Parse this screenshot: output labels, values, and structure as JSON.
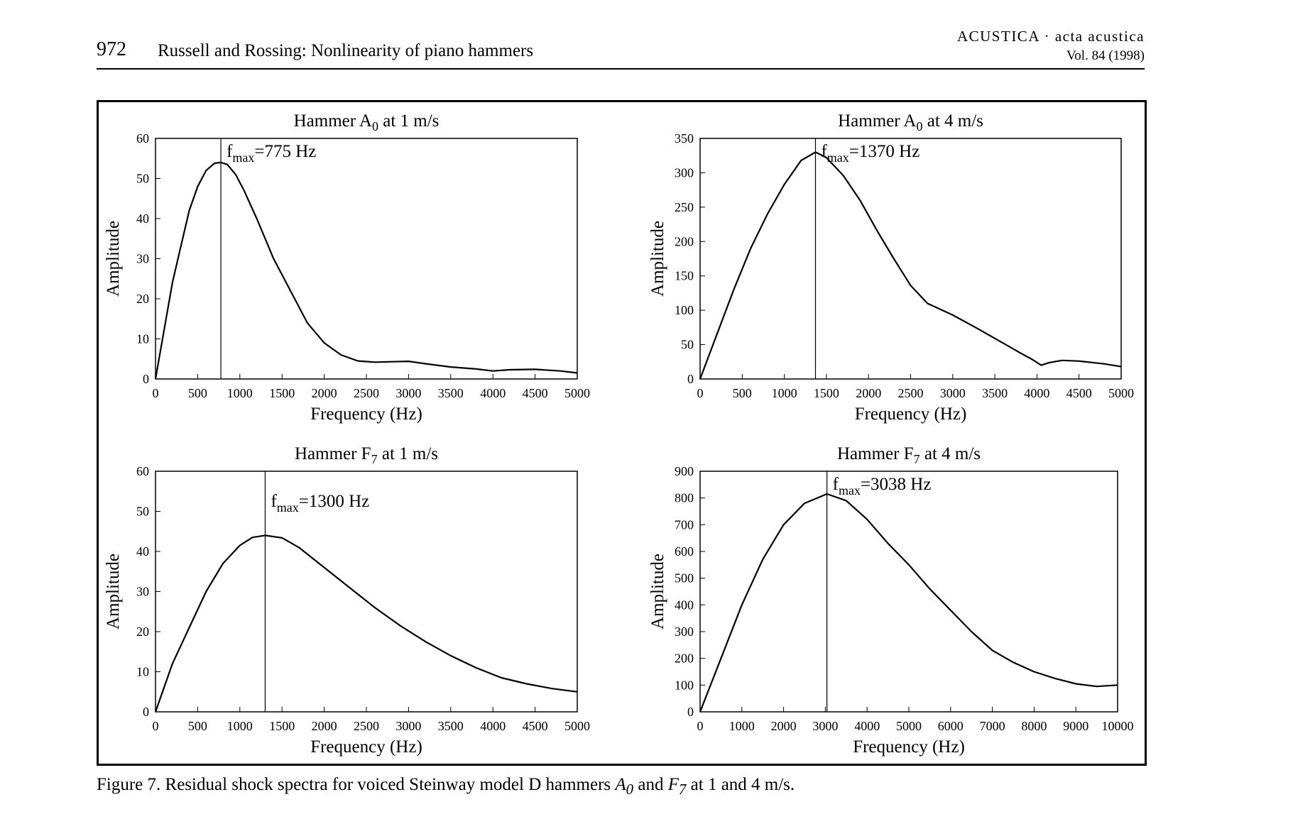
{
  "header": {
    "page_number": "972",
    "running_title": "Russell and Rossing: Nonlinearity of piano hammers",
    "journal": "ACUSTICA · acta acustica",
    "volume": "Vol. 84 (1998)"
  },
  "caption": {
    "prefix": "Figure 7. Residual shock spectra for voiced Steinway model D hammers ",
    "a_main": "A",
    "a_sub": "0",
    "mid": " and ",
    "f_main": "F",
    "f_sub": "7",
    "suffix": " at 1 and 4 m/s."
  },
  "chart_data": [
    {
      "type": "line",
      "title": "Hammer A",
      "title_sub": "0",
      "title_rest": " at 1 m/s",
      "xlabel": "Frequency (Hz)",
      "ylabel": "Amplitude",
      "xlim": [
        0,
        5000
      ],
      "ylim": [
        0,
        60
      ],
      "xticks": [
        0,
        500,
        1000,
        1500,
        2000,
        2500,
        3000,
        3500,
        4000,
        4500,
        5000
      ],
      "yticks": [
        0,
        10,
        20,
        30,
        40,
        50,
        60
      ],
      "fmax": 775,
      "fmax_label": "max",
      "fmax_value": "=775 Hz",
      "x": [
        0,
        100,
        200,
        300,
        400,
        500,
        600,
        700,
        775,
        850,
        950,
        1050,
        1200,
        1400,
        1600,
        1800,
        2000,
        2200,
        2400,
        2600,
        2800,
        3000,
        3200,
        3500,
        3800,
        4000,
        4200,
        4500,
        4800,
        5000
      ],
      "y": [
        0,
        12,
        24,
        33,
        42,
        48,
        52,
        53.8,
        54,
        53.5,
        51,
        47,
        40,
        30,
        22,
        14,
        9,
        6,
        4.5,
        4.2,
        4.3,
        4.4,
        3.8,
        3.0,
        2.5,
        2.0,
        2.3,
        2.4,
        2.0,
        1.5
      ],
      "grid": false
    },
    {
      "type": "line",
      "title": "Hammer A",
      "title_sub": "0",
      "title_rest": " at 4 m/s",
      "xlabel": "Frequency (Hz)",
      "ylabel": "Amplitude",
      "xlim": [
        0,
        5000
      ],
      "ylim": [
        0,
        350
      ],
      "xticks": [
        0,
        500,
        1000,
        1500,
        2000,
        2500,
        3000,
        3500,
        4000,
        4500,
        5000
      ],
      "yticks": [
        0,
        50,
        100,
        150,
        200,
        250,
        300,
        350
      ],
      "fmax": 1370,
      "fmax_label": "max",
      "fmax_value": "=1370 Hz",
      "x": [
        0,
        200,
        400,
        600,
        800,
        1000,
        1200,
        1370,
        1500,
        1700,
        1900,
        2100,
        2300,
        2500,
        2700,
        3000,
        3300,
        3600,
        3800,
        3950,
        4050,
        4150,
        4300,
        4500,
        4800,
        5000
      ],
      "y": [
        0,
        65,
        130,
        190,
        240,
        283,
        318,
        330,
        322,
        296,
        260,
        216,
        175,
        136,
        110,
        93,
        73,
        52,
        38,
        28,
        20,
        24,
        27,
        26,
        22,
        18
      ],
      "grid": false
    },
    {
      "type": "line",
      "title": "Hammer F",
      "title_sub": "7",
      "title_rest": " at 1 m/s",
      "xlabel": "Frequency (Hz)",
      "ylabel": "Amplitude",
      "xlim": [
        0,
        5000
      ],
      "ylim": [
        0,
        60
      ],
      "xticks": [
        0,
        500,
        1000,
        1500,
        2000,
        2500,
        3000,
        3500,
        4000,
        4500,
        5000
      ],
      "yticks": [
        0,
        10,
        20,
        30,
        40,
        50,
        60
      ],
      "fmax": 1300,
      "fmax_label": "max",
      "fmax_value": "=1300 Hz",
      "x": [
        0,
        100,
        200,
        400,
        600,
        800,
        1000,
        1150,
        1300,
        1500,
        1700,
        2000,
        2300,
        2600,
        2900,
        3200,
        3500,
        3800,
        4100,
        4400,
        4700,
        5000
      ],
      "y": [
        0,
        6,
        12,
        21,
        30,
        37,
        41.5,
        43.5,
        44,
        43.4,
        41,
        36,
        31,
        26,
        21.5,
        17.5,
        14,
        11,
        8.5,
        7,
        5.8,
        5
      ],
      "grid": false
    },
    {
      "type": "line",
      "title": "Hammer F",
      "title_sub": "7",
      "title_rest": " at 4 m/s",
      "xlabel": "Frequency (Hz)",
      "ylabel": "Amplitude",
      "xlim": [
        0,
        10000
      ],
      "ylim": [
        0,
        900
      ],
      "xticks": [
        0,
        1000,
        2000,
        3000,
        4000,
        5000,
        6000,
        7000,
        8000,
        9000,
        10000
      ],
      "yticks": [
        0,
        100,
        200,
        300,
        400,
        500,
        600,
        700,
        800,
        900
      ],
      "fmax": 3038,
      "fmax_label": "max",
      "fmax_value": "=3038 Hz",
      "x": [
        0,
        500,
        1000,
        1500,
        2000,
        2500,
        3038,
        3500,
        4000,
        4500,
        5000,
        5500,
        6000,
        6500,
        7000,
        7500,
        8000,
        8500,
        9000,
        9500,
        10000
      ],
      "y": [
        0,
        200,
        400,
        570,
        700,
        780,
        815,
        790,
        720,
        630,
        550,
        460,
        380,
        300,
        230,
        185,
        150,
        125,
        105,
        95,
        100
      ],
      "grid": false
    }
  ]
}
